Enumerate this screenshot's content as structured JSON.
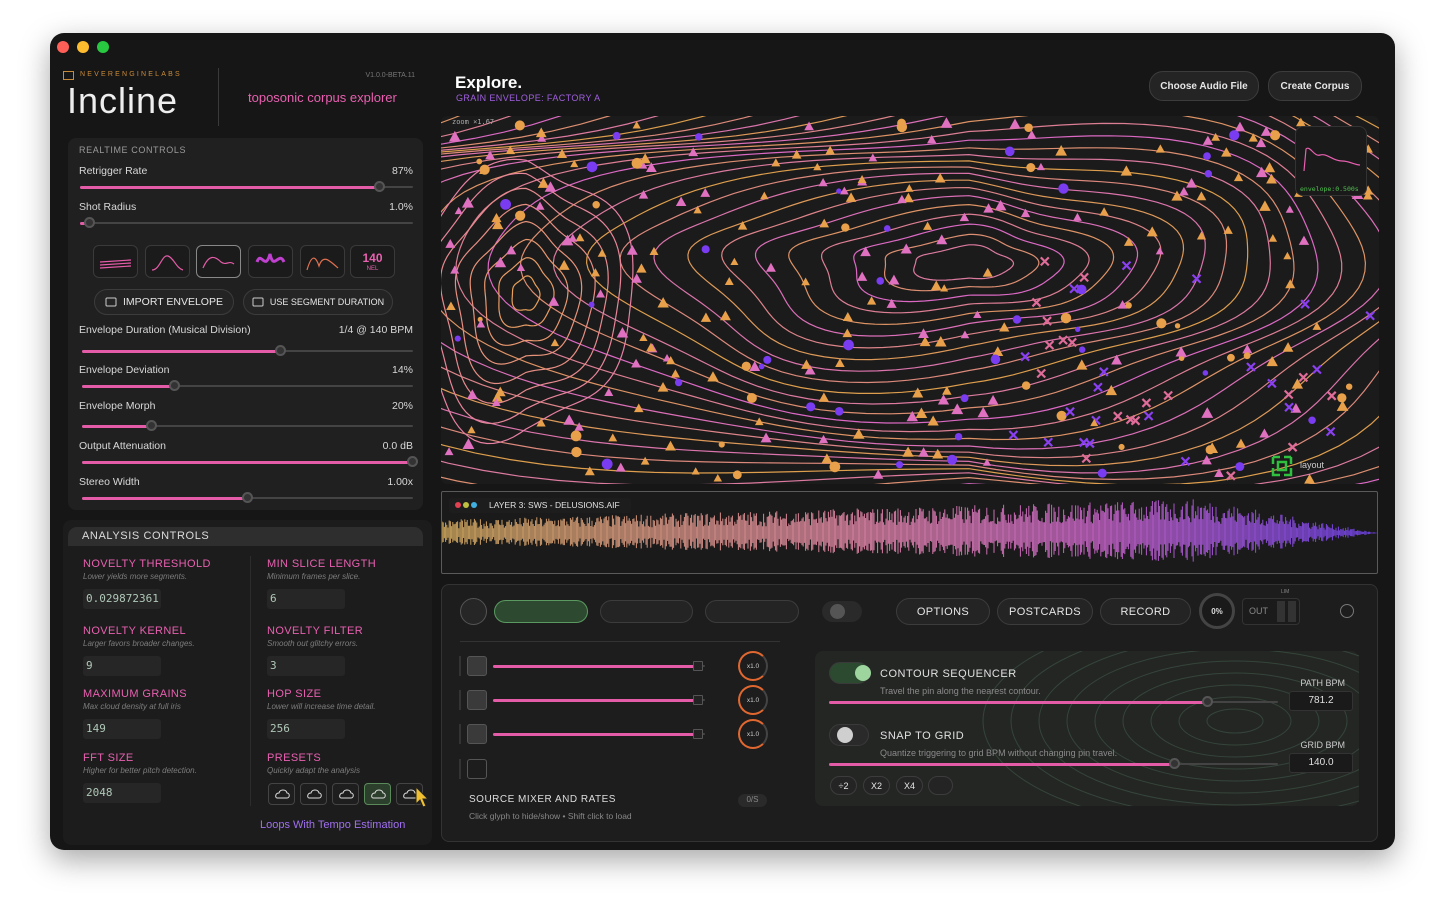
{
  "brand": {
    "lab": "NEVERENGINELABS",
    "version": "V1.0.0-BETA.11",
    "title": "Incline",
    "subtitle": "toposonic corpus explorer"
  },
  "realtime": {
    "heading": "REALTIME CONTROLS",
    "sliders": [
      {
        "label": "Retrigger Rate",
        "value": "87%"
      },
      {
        "label": "Shot Radius",
        "value": "1.0%"
      },
      {
        "label": "Envelope Duration (Musical Division)",
        "value": "1/4 @ 140 BPM"
      },
      {
        "label": "Envelope Deviation",
        "value": "14%"
      },
      {
        "label": "Envelope Morph",
        "value": "20%"
      },
      {
        "label": "Output Attenuation",
        "value": "0.0 dB"
      },
      {
        "label": "Stereo Width",
        "value": "1.00x"
      }
    ],
    "tempo_badge": {
      "value": "140",
      "unit": "NEL"
    },
    "buttons": [
      "IMPORT ENVELOPE",
      "USE SEGMENT DURATION"
    ]
  },
  "analysis": {
    "heading": "ANALYSIS CONTROLS",
    "fields": [
      {
        "label": "NOVELTY THRESHOLD",
        "hint": "Lower yields more segments.",
        "value": "0.029872361"
      },
      {
        "label": "MIN SLICE LENGTH",
        "hint": "Minimum frames per slice.",
        "value": "6"
      },
      {
        "label": "NOVELTY KERNEL",
        "hint": "Larger favors broader changes.",
        "value": "9"
      },
      {
        "label": "NOVELTY FILTER",
        "hint": "Smooth out glitchy errors.",
        "value": "3"
      },
      {
        "label": "MAXIMUM GRAINS",
        "hint": "Max cloud density at full iris",
        "value": "149"
      },
      {
        "label": "HOP SIZE",
        "hint": "Lower will increase time detail.",
        "value": "256"
      },
      {
        "label": "FFT SIZE",
        "hint": "Higher for better pitch detection.",
        "value": "2048"
      }
    ],
    "presets": {
      "label": "PRESETS",
      "hint": "Quickly adapt the analysis",
      "selected": "Loops With Tempo Estimation"
    }
  },
  "explore": {
    "title": "Explore.",
    "subtitle": "GRAIN ENVELOPE: FACTORY A",
    "buttons": [
      "Choose Audio File",
      "Create Corpus"
    ]
  },
  "map": {
    "zoom": "zoom ×1.67",
    "envelope": "envelope:0.500s",
    "layout": "layout"
  },
  "waveform": {
    "layer": "LAYER 3: SWS - DELUSIONS.AIF"
  },
  "transport": {
    "buttons": [
      "OPTIONS",
      "POSTCARDS",
      "RECORD"
    ],
    "dial": "0%",
    "out": "OUT",
    "lim": "LIM"
  },
  "mixer": {
    "rates": [
      "x1.0",
      "x1.0",
      "x1.0"
    ],
    "title": "SOURCE MIXER AND RATES",
    "hint": "Click glyph to hide/show • Shift click to load",
    "badge": "0/S"
  },
  "sequencer": {
    "contour": {
      "title": "CONTOUR SEQUENCER",
      "hint": "Travel the pin along the nearest contour.",
      "bpm_label": "PATH BPM",
      "bpm": "781.2"
    },
    "snap": {
      "title": "SNAP TO GRID",
      "hint": "Quantize triggering to grid BPM without changing pin travel.",
      "bpm_label": "GRID BPM",
      "bpm": "140.0"
    },
    "multipliers": [
      "÷2",
      "X2",
      "X4"
    ]
  }
}
